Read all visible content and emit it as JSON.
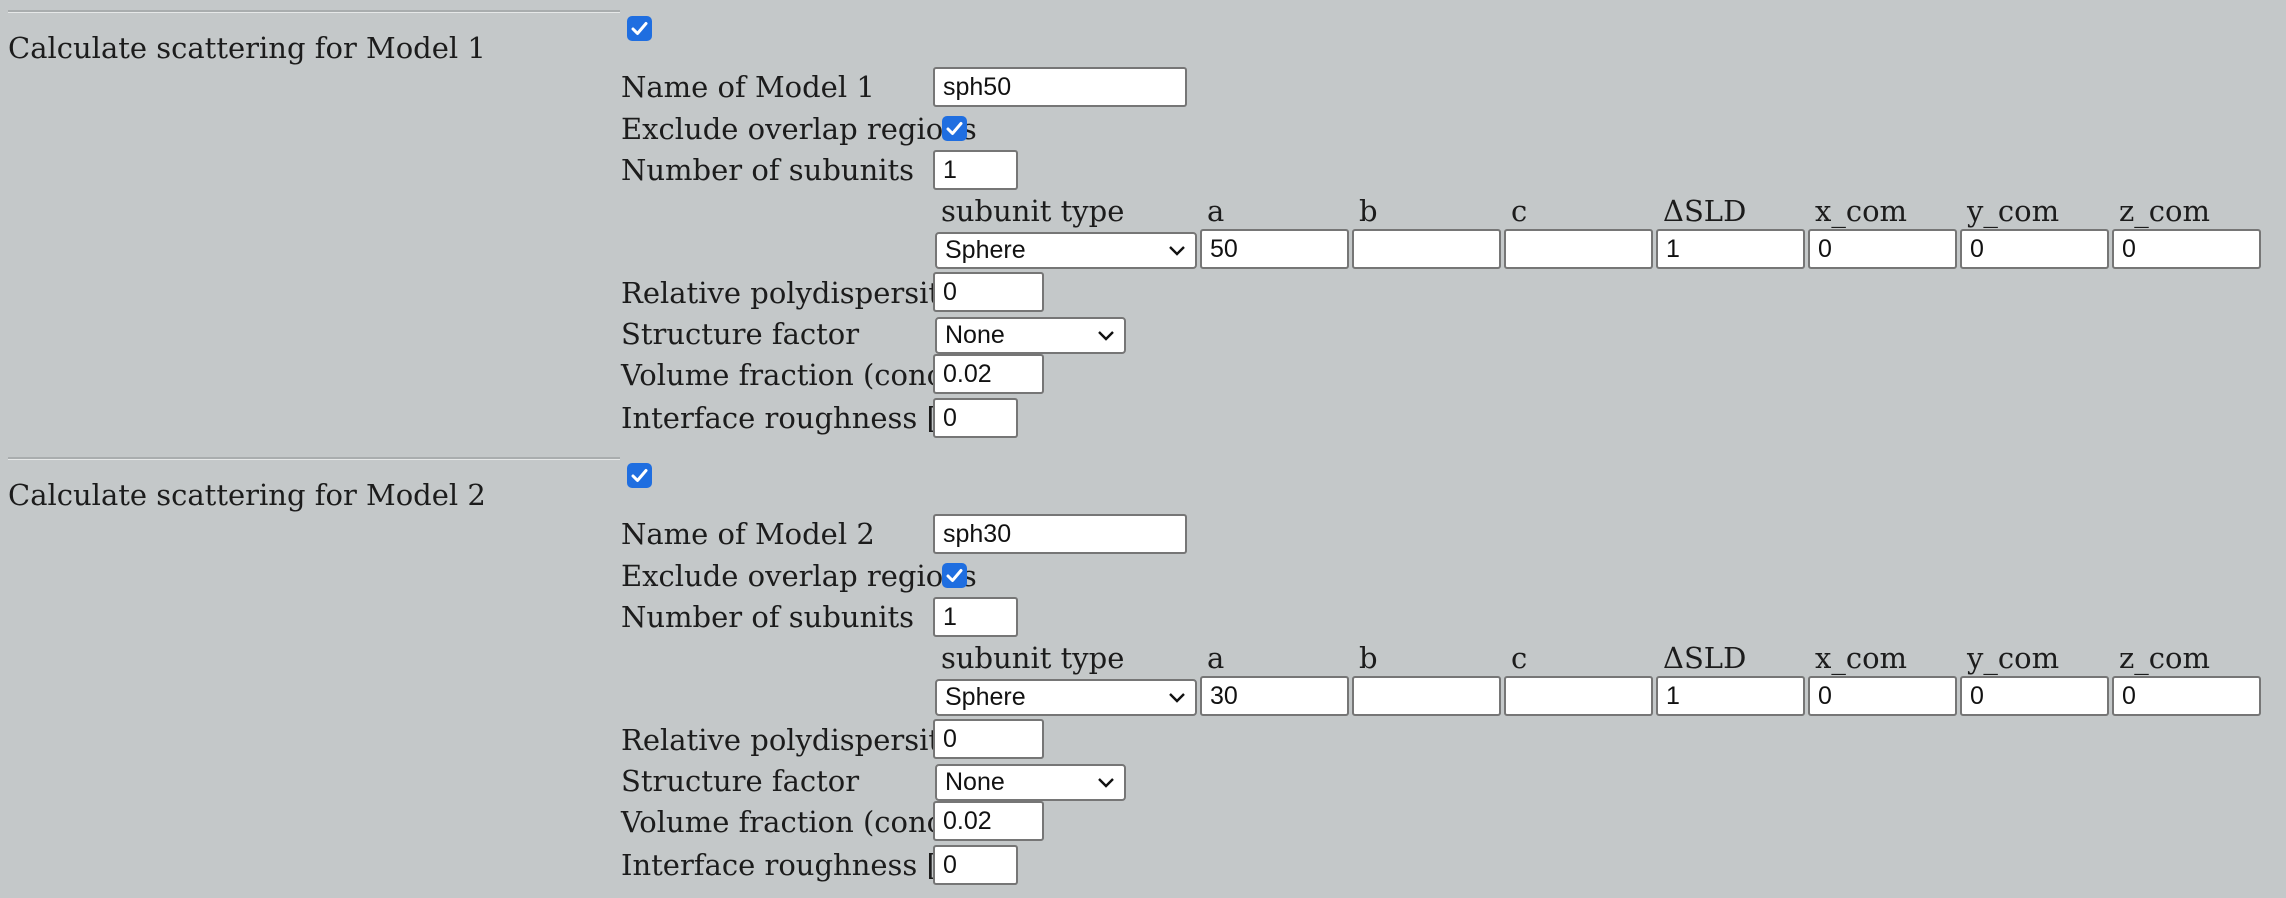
{
  "models": [
    {
      "section_title": "Calculate scattering for Model 1",
      "calculate_checked": true,
      "name_label": "Name of Model 1",
      "name_value": "sph50",
      "exclude_label": "Exclude overlap regions",
      "exclude_checked": true,
      "subunits_label": "Number of subunits",
      "subunits_value": "1",
      "columns": [
        "subunit type",
        "a",
        "b",
        "c",
        "ΔSLD",
        "x_com",
        "y_com",
        "z_com"
      ],
      "subunit": {
        "type": "Sphere",
        "a": "50",
        "b": "",
        "c": "",
        "dsld": "1",
        "x_com": "0",
        "y_com": "0",
        "z_com": "0"
      },
      "polydispersity_label": "Relative polydispersity",
      "polydispersity_value": "0",
      "structure_label": "Structure factor",
      "structure_value": "None",
      "volume_label": "Volume fraction (conc)",
      "volume_value": "0.02",
      "roughness_label": "Interface roughness [Å]",
      "roughness_value": "0"
    },
    {
      "section_title": "Calculate scattering for Model 2",
      "calculate_checked": true,
      "name_label": "Name of Model 2",
      "name_value": "sph30",
      "exclude_label": "Exclude overlap regions",
      "exclude_checked": true,
      "subunits_label": "Number of subunits",
      "subunits_value": "1",
      "columns": [
        "subunit type",
        "a",
        "b",
        "c",
        "ΔSLD",
        "x_com",
        "y_com",
        "z_com"
      ],
      "subunit": {
        "type": "Sphere",
        "a": "30",
        "b": "",
        "c": "",
        "dsld": "1",
        "x_com": "0",
        "y_com": "0",
        "z_com": "0"
      },
      "polydispersity_label": "Relative polydispersity",
      "polydispersity_value": "0",
      "structure_label": "Structure factor",
      "structure_value": "None",
      "volume_label": "Volume fraction (conc)",
      "volume_value": "0.02",
      "roughness_label": "Interface roughness [Å]",
      "roughness_value": "0"
    }
  ],
  "colors": {
    "background": "#c4c8c9",
    "checkbox": "#1f6ee0"
  }
}
